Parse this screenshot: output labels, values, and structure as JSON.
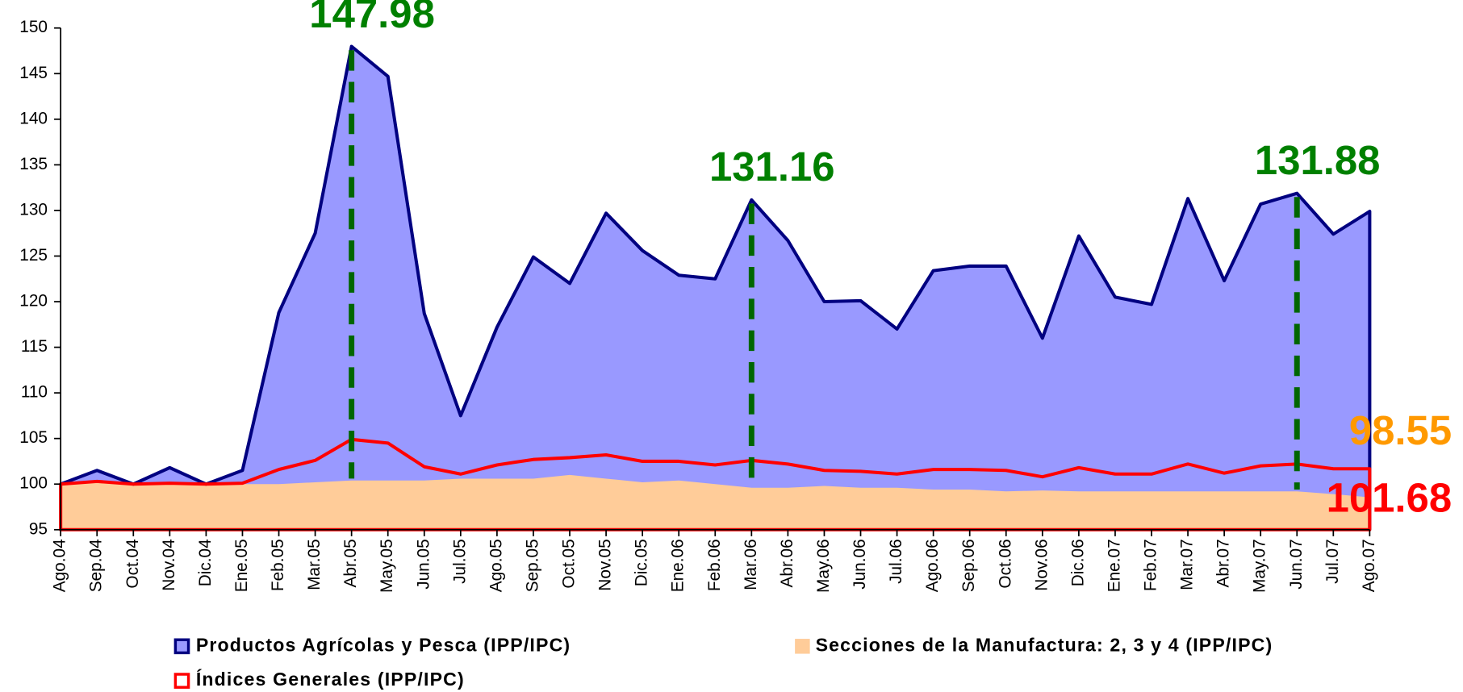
{
  "chart_data": {
    "type": "area",
    "categories": [
      "Ago.04",
      "Sep.04",
      "Oct.04",
      "Nov.04",
      "Dic.04",
      "Ene.05",
      "Feb.05",
      "Mar.05",
      "Abr.05",
      "May.05",
      "Jun.05",
      "Jul.05",
      "Ago.05",
      "Sep.05",
      "Oct.05",
      "Nov.05",
      "Dic.05",
      "Ene.06",
      "Feb.06",
      "Mar.06",
      "Abr.06",
      "May.06",
      "Jun.06",
      "Jul.06",
      "Ago.06",
      "Sep.06",
      "Oct.06",
      "Nov.06",
      "Dic.06",
      "Ene.07",
      "Feb.07",
      "Mar.07",
      "Abr.07",
      "May.07",
      "Jun.07",
      "Jul.07",
      "Ago.07"
    ],
    "series": [
      {
        "name": "Productos Agrícolas y Pesca (IPP/IPC)",
        "color": "#9999ff",
        "line_color": "#000080",
        "label_color": "#008000",
        "values": [
          100,
          101.5,
          100,
          101.8,
          100,
          101.5,
          118.8,
          127.5,
          147.98,
          144.7,
          118.7,
          107.5,
          117.2,
          124.9,
          122,
          129.7,
          125.6,
          122.9,
          122.5,
          131.16,
          126.7,
          120,
          120.1,
          117,
          123.4,
          123.9,
          123.9,
          116,
          127.2,
          120.5,
          119.7,
          131.3,
          122.3,
          130.7,
          131.88,
          127.4,
          129.9
        ],
        "value_labels": [
          null,
          null,
          null,
          null,
          null,
          null,
          null,
          null,
          "147.98",
          null,
          null,
          null,
          null,
          null,
          null,
          null,
          null,
          null,
          null,
          "131.16",
          null,
          null,
          null,
          null,
          null,
          null,
          null,
          null,
          null,
          null,
          null,
          null,
          null,
          null,
          "131.88",
          null,
          null
        ]
      },
      {
        "name": "Secciones de la Manufactura: 2, 3 y 4 (IPP/IPC)",
        "color": "#ffcc99",
        "label_color": "#ff9900",
        "values": [
          100,
          100.3,
          100,
          100,
          99.9,
          100,
          100,
          100.2,
          100.4,
          100.4,
          100.4,
          100.6,
          100.6,
          100.6,
          101,
          100.6,
          100.2,
          100.4,
          100,
          99.6,
          99.6,
          99.8,
          99.6,
          99.6,
          99.4,
          99.4,
          99.2,
          99.3,
          99.2,
          99.2,
          99.2,
          99.2,
          99.2,
          99.2,
          99.2,
          98.9,
          98.55
        ],
        "value_labels": [
          null,
          null,
          null,
          null,
          null,
          null,
          null,
          null,
          null,
          null,
          null,
          null,
          null,
          null,
          null,
          null,
          null,
          null,
          null,
          null,
          null,
          null,
          null,
          null,
          null,
          null,
          null,
          null,
          null,
          null,
          null,
          null,
          null,
          null,
          null,
          null,
          "98.55"
        ]
      },
      {
        "name": "Índices Generales (IPP/IPC)",
        "color": "#ff0000",
        "label_color": "#ff0000",
        "values": [
          100,
          100.3,
          100,
          100.1,
          100,
          100.1,
          101.6,
          102.6,
          104.9,
          104.5,
          101.9,
          101.1,
          102.1,
          102.7,
          102.9,
          103.2,
          102.5,
          102.5,
          102.1,
          102.6,
          102.2,
          101.5,
          101.4,
          101.1,
          101.6,
          101.6,
          101.5,
          100.8,
          101.8,
          101.1,
          101.1,
          102.2,
          101.2,
          102,
          102.2,
          101.68,
          101.68
        ],
        "value_labels": [
          null,
          null,
          null,
          null,
          null,
          null,
          null,
          null,
          null,
          null,
          null,
          null,
          null,
          null,
          null,
          null,
          null,
          null,
          null,
          null,
          null,
          null,
          null,
          null,
          null,
          null,
          null,
          null,
          null,
          null,
          null,
          null,
          null,
          null,
          null,
          null,
          "101.68"
        ]
      }
    ],
    "ylim": [
      95,
      150
    ],
    "yticks": [
      95,
      100,
      105,
      110,
      115,
      120,
      125,
      130,
      135,
      140,
      145,
      150
    ],
    "annotation_line_color": "#006600",
    "legend": "bottom"
  }
}
